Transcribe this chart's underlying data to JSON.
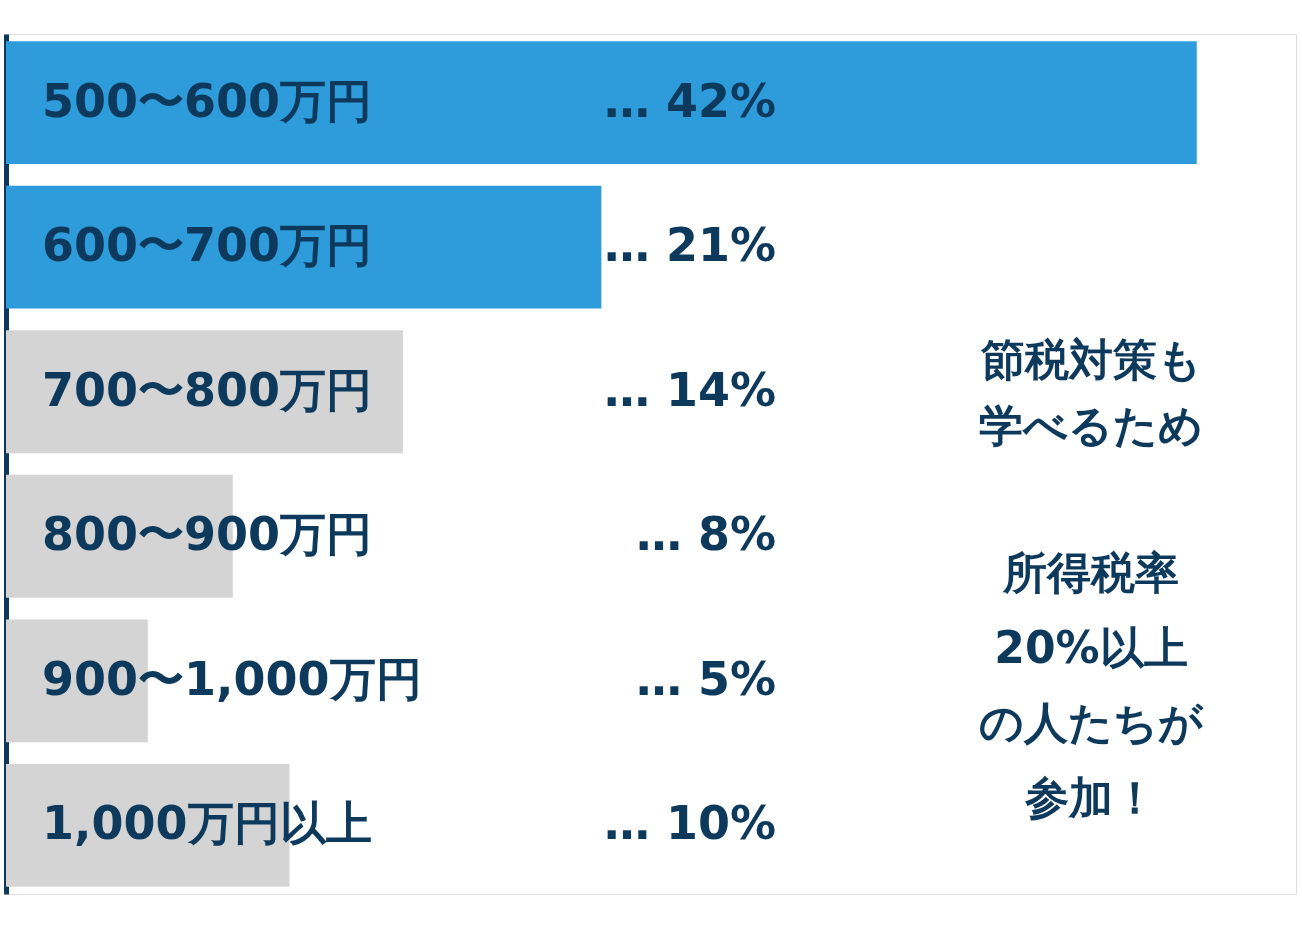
{
  "chart_data": {
    "type": "bar",
    "orientation": "horizontal",
    "categories": [
      "500〜600万円",
      "600〜700万円",
      "700〜800万円",
      "800〜900万円",
      "900〜1,000万円",
      "1,000万円以上"
    ],
    "values": [
      42,
      21,
      14,
      8,
      5,
      10
    ],
    "colors": [
      "#2e9cdb",
      "#2e9cdb",
      "#d4d4d4",
      "#d4d4d4",
      "#d4d4d4",
      "#d4d4d4"
    ],
    "value_labels": [
      "… 42%",
      "… 21%",
      "… 14%",
      "…  8%",
      "…  5%",
      "… 10%"
    ],
    "xlim": [
      0,
      45.5
    ],
    "tick_labels": false,
    "annotations": [
      "節税対策も",
      "学べるため",
      "所得税率",
      "20%以上",
      "の人たちが",
      "参加！"
    ]
  }
}
